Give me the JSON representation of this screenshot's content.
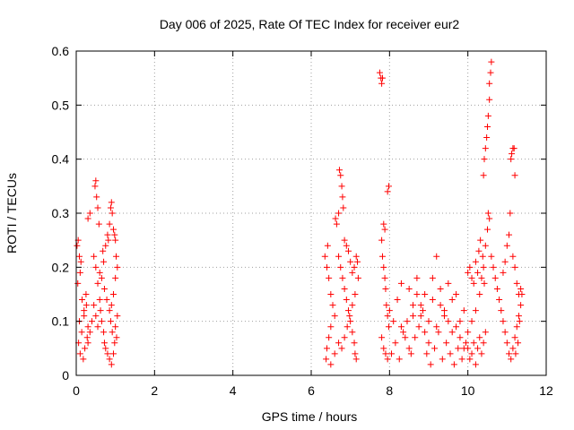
{
  "chart_data": {
    "type": "scatter",
    "title": "Day 006 of 2025, Rate Of TEC Index for receiver eur2",
    "xlabel": "GPS time / hours",
    "ylabel": "ROTI / TECUs",
    "xlim": [
      0,
      12
    ],
    "ylim": [
      0,
      0.6
    ],
    "xticks": [
      0,
      2,
      4,
      6,
      8,
      10,
      12
    ],
    "xtick_labels": [
      "0",
      "2",
      "4",
      "6",
      "8",
      "10",
      "12"
    ],
    "yticks": [
      0,
      0.1,
      0.2,
      0.3,
      0.4,
      0.5,
      0.6
    ],
    "ytick_labels": [
      "0",
      "0.1",
      "0.2",
      "0.3",
      "0.4",
      "0.5",
      "0.6"
    ],
    "grid": true,
    "marker": "+",
    "color": "#ff0000",
    "points": [
      [
        0.02,
        0.24
      ],
      [
        0.05,
        0.25
      ],
      [
        0.08,
        0.22
      ],
      [
        0.1,
        0.19
      ],
      [
        0.12,
        0.21
      ],
      [
        0.04,
        0.17
      ],
      [
        0.15,
        0.14
      ],
      [
        0.2,
        0.12
      ],
      [
        0.25,
        0.15
      ],
      [
        0.3,
        0.09
      ],
      [
        0.06,
        0.06
      ],
      [
        0.1,
        0.04
      ],
      [
        0.18,
        0.03
      ],
      [
        0.22,
        0.05
      ],
      [
        0.28,
        0.07
      ],
      [
        0.14,
        0.08
      ],
      [
        0.08,
        0.1
      ],
      [
        0.2,
        0.11
      ],
      [
        0.26,
        0.13
      ],
      [
        0.3,
        0.06
      ],
      [
        0.3,
        0.29
      ],
      [
        0.35,
        0.3
      ],
      [
        0.48,
        0.35
      ],
      [
        0.5,
        0.36
      ],
      [
        0.52,
        0.33
      ],
      [
        0.55,
        0.31
      ],
      [
        0.58,
        0.28
      ],
      [
        0.45,
        0.22
      ],
      [
        0.5,
        0.2
      ],
      [
        0.55,
        0.17
      ],
      [
        0.6,
        0.14
      ],
      [
        0.62,
        0.12
      ],
      [
        0.65,
        0.1
      ],
      [
        0.7,
        0.08
      ],
      [
        0.72,
        0.06
      ],
      [
        0.75,
        0.05
      ],
      [
        0.8,
        0.04
      ],
      [
        0.85,
        0.03
      ],
      [
        0.9,
        0.02
      ],
      [
        0.95,
        0.04
      ],
      [
        0.68,
        0.23
      ],
      [
        0.7,
        0.21
      ],
      [
        0.75,
        0.24
      ],
      [
        0.8,
        0.26
      ],
      [
        0.82,
        0.25
      ],
      [
        0.85,
        0.28
      ],
      [
        0.88,
        0.31
      ],
      [
        0.9,
        0.32
      ],
      [
        0.92,
        0.3
      ],
      [
        0.95,
        0.27
      ],
      [
        0.98,
        0.26
      ],
      [
        1.0,
        0.25
      ],
      [
        1.02,
        0.22
      ],
      [
        1.05,
        0.2
      ],
      [
        1.0,
        0.18
      ],
      [
        0.95,
        0.15
      ],
      [
        0.9,
        0.13
      ],
      [
        1.05,
        0.11
      ],
      [
        1.0,
        0.09
      ],
      [
        1.03,
        0.07
      ],
      [
        0.6,
        0.19
      ],
      [
        0.65,
        0.18
      ],
      [
        0.72,
        0.16
      ],
      [
        0.78,
        0.14
      ],
      [
        0.85,
        0.12
      ],
      [
        0.88,
        0.1
      ],
      [
        0.92,
        0.08
      ],
      [
        0.98,
        0.06
      ],
      [
        0.55,
        0.09
      ],
      [
        0.5,
        0.11
      ],
      [
        0.45,
        0.13
      ],
      [
        0.4,
        0.1
      ],
      [
        0.35,
        0.08
      ],
      [
        6.35,
        0.22
      ],
      [
        6.4,
        0.2
      ],
      [
        6.42,
        0.24
      ],
      [
        6.45,
        0.18
      ],
      [
        6.5,
        0.15
      ],
      [
        6.55,
        0.13
      ],
      [
        6.6,
        0.11
      ],
      [
        6.5,
        0.09
      ],
      [
        6.45,
        0.07
      ],
      [
        6.4,
        0.05
      ],
      [
        6.38,
        0.03
      ],
      [
        6.5,
        0.02
      ],
      [
        6.6,
        0.04
      ],
      [
        6.7,
        0.06
      ],
      [
        6.62,
        0.29
      ],
      [
        6.65,
        0.28
      ],
      [
        6.7,
        0.3
      ],
      [
        6.72,
        0.38
      ],
      [
        6.75,
        0.37
      ],
      [
        6.78,
        0.35
      ],
      [
        6.8,
        0.33
      ],
      [
        6.82,
        0.31
      ],
      [
        6.85,
        0.25
      ],
      [
        6.7,
        0.22
      ],
      [
        6.75,
        0.2
      ],
      [
        6.8,
        0.18
      ],
      [
        6.85,
        0.16
      ],
      [
        6.9,
        0.14
      ],
      [
        6.95,
        0.12
      ],
      [
        7.0,
        0.1
      ],
      [
        7.05,
        0.08
      ],
      [
        7.1,
        0.06
      ],
      [
        7.12,
        0.04
      ],
      [
        7.15,
        0.03
      ],
      [
        6.9,
        0.24
      ],
      [
        6.95,
        0.23
      ],
      [
        7.0,
        0.21
      ],
      [
        7.05,
        0.19
      ],
      [
        7.1,
        0.2
      ],
      [
        7.15,
        0.22
      ],
      [
        7.18,
        0.21
      ],
      [
        7.2,
        0.18
      ],
      [
        7.12,
        0.15
      ],
      [
        7.05,
        0.13
      ],
      [
        6.98,
        0.11
      ],
      [
        6.92,
        0.09
      ],
      [
        6.85,
        0.07
      ],
      [
        6.78,
        0.05
      ],
      [
        7.75,
        0.56
      ],
      [
        7.78,
        0.55
      ],
      [
        7.8,
        0.54
      ],
      [
        7.82,
        0.55
      ],
      [
        7.85,
        0.28
      ],
      [
        7.88,
        0.27
      ],
      [
        7.95,
        0.34
      ],
      [
        7.98,
        0.35
      ],
      [
        7.8,
        0.25
      ],
      [
        7.82,
        0.22
      ],
      [
        7.85,
        0.2
      ],
      [
        7.88,
        0.18
      ],
      [
        7.9,
        0.16
      ],
      [
        7.92,
        0.13
      ],
      [
        7.95,
        0.11
      ],
      [
        7.98,
        0.09
      ],
      [
        7.8,
        0.07
      ],
      [
        7.85,
        0.05
      ],
      [
        7.9,
        0.04
      ],
      [
        7.95,
        0.03
      ],
      [
        8.0,
        0.12
      ],
      [
        8.1,
        0.1
      ],
      [
        8.2,
        0.14
      ],
      [
        8.3,
        0.09
      ],
      [
        8.4,
        0.07
      ],
      [
        8.5,
        0.05
      ],
      [
        8.6,
        0.11
      ],
      [
        8.7,
        0.15
      ],
      [
        8.8,
        0.13
      ],
      [
        8.9,
        0.08
      ],
      [
        9.0,
        0.06
      ],
      [
        9.1,
        0.18
      ],
      [
        9.2,
        0.22
      ],
      [
        9.3,
        0.16
      ],
      [
        9.4,
        0.12
      ],
      [
        9.5,
        0.1
      ],
      [
        9.6,
        0.14
      ],
      [
        9.7,
        0.09
      ],
      [
        9.8,
        0.07
      ],
      [
        9.9,
        0.05
      ],
      [
        8.05,
        0.04
      ],
      [
        8.15,
        0.06
      ],
      [
        8.25,
        0.03
      ],
      [
        8.35,
        0.08
      ],
      [
        8.45,
        0.1
      ],
      [
        8.55,
        0.04
      ],
      [
        8.65,
        0.07
      ],
      [
        8.75,
        0.09
      ],
      [
        8.85,
        0.12
      ],
      [
        8.95,
        0.04
      ],
      [
        9.05,
        0.02
      ],
      [
        9.15,
        0.05
      ],
      [
        9.25,
        0.08
      ],
      [
        9.35,
        0.03
      ],
      [
        9.45,
        0.06
      ],
      [
        9.55,
        0.04
      ],
      [
        9.65,
        0.02
      ],
      [
        9.75,
        0.05
      ],
      [
        9.85,
        0.03
      ],
      [
        9.95,
        0.06
      ],
      [
        8.3,
        0.17
      ],
      [
        8.5,
        0.16
      ],
      [
        8.7,
        0.18
      ],
      [
        8.9,
        0.15
      ],
      [
        9.1,
        0.14
      ],
      [
        9.3,
        0.13
      ],
      [
        9.5,
        0.17
      ],
      [
        9.7,
        0.15
      ],
      [
        9.9,
        0.12
      ],
      [
        8.6,
        0.13
      ],
      [
        8.8,
        0.11
      ],
      [
        9.0,
        0.1
      ],
      [
        9.2,
        0.09
      ],
      [
        9.4,
        0.11
      ],
      [
        9.6,
        0.08
      ],
      [
        9.8,
        0.1
      ],
      [
        10.0,
        0.08
      ],
      [
        10.1,
        0.1
      ],
      [
        10.2,
        0.12
      ],
      [
        10.3,
        0.15
      ],
      [
        10.35,
        0.18
      ],
      [
        10.4,
        0.2
      ],
      [
        10.45,
        0.24
      ],
      [
        10.5,
        0.27
      ],
      [
        10.52,
        0.3
      ],
      [
        10.55,
        0.29
      ],
      [
        10.4,
        0.37
      ],
      [
        10.42,
        0.4
      ],
      [
        10.45,
        0.42
      ],
      [
        10.48,
        0.44
      ],
      [
        10.5,
        0.46
      ],
      [
        10.52,
        0.48
      ],
      [
        10.55,
        0.51
      ],
      [
        10.58,
        0.56
      ],
      [
        10.6,
        0.58
      ],
      [
        10.55,
        0.54
      ],
      [
        10.6,
        0.22
      ],
      [
        10.65,
        0.2
      ],
      [
        10.7,
        0.18
      ],
      [
        10.75,
        0.16
      ],
      [
        10.8,
        0.14
      ],
      [
        10.85,
        0.12
      ],
      [
        10.9,
        0.1
      ],
      [
        10.95,
        0.08
      ],
      [
        11.0,
        0.06
      ],
      [
        11.05,
        0.04
      ],
      [
        11.1,
        0.03
      ],
      [
        11.15,
        0.05
      ],
      [
        11.2,
        0.07
      ],
      [
        11.25,
        0.09
      ],
      [
        11.3,
        0.11
      ],
      [
        11.35,
        0.13
      ],
      [
        11.3,
        0.15
      ],
      [
        11.25,
        0.17
      ],
      [
        11.2,
        0.2
      ],
      [
        11.15,
        0.22
      ],
      [
        11.1,
        0.4
      ],
      [
        11.12,
        0.41
      ],
      [
        11.15,
        0.42
      ],
      [
        11.18,
        0.42
      ],
      [
        11.2,
        0.37
      ],
      [
        11.08,
        0.3
      ],
      [
        11.05,
        0.26
      ],
      [
        11.0,
        0.24
      ],
      [
        10.95,
        0.21
      ],
      [
        10.9,
        0.19
      ],
      [
        10.0,
        0.05
      ],
      [
        10.05,
        0.03
      ],
      [
        10.1,
        0.04
      ],
      [
        10.15,
        0.06
      ],
      [
        10.2,
        0.02
      ],
      [
        10.25,
        0.05
      ],
      [
        10.3,
        0.07
      ],
      [
        10.35,
        0.04
      ],
      [
        10.4,
        0.06
      ],
      [
        10.45,
        0.08
      ],
      [
        10.0,
        0.19
      ],
      [
        10.05,
        0.2
      ],
      [
        10.1,
        0.18
      ],
      [
        10.15,
        0.17
      ],
      [
        10.2,
        0.21
      ],
      [
        10.25,
        0.19
      ],
      [
        10.28,
        0.23
      ],
      [
        10.32,
        0.25
      ],
      [
        10.38,
        0.22
      ],
      [
        10.42,
        0.17
      ],
      [
        11.35,
        0.16
      ],
      [
        11.38,
        0.15
      ],
      [
        11.32,
        0.1
      ],
      [
        11.28,
        0.06
      ],
      [
        11.22,
        0.04
      ]
    ]
  }
}
